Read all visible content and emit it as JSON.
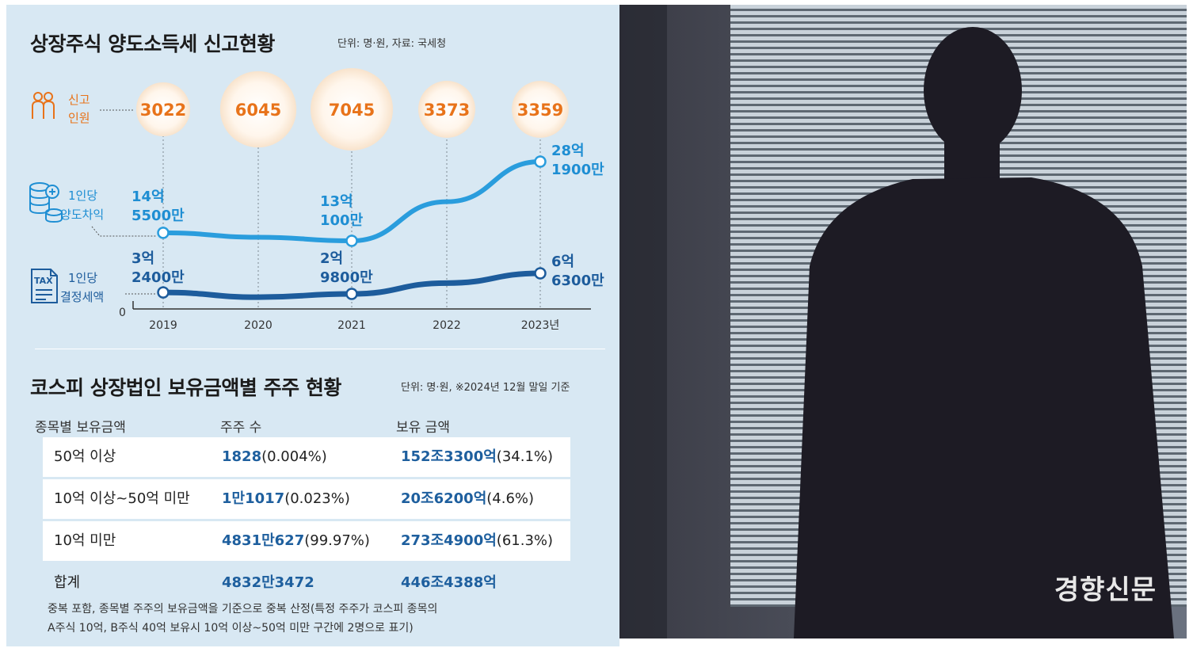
{
  "chart1": {
    "title": "상장주식 양도소득세 신고현황",
    "unit": "단위: 명·원, 자료: 국세청",
    "row_labels": {
      "count": [
        "신고",
        "인원"
      ],
      "gain": [
        "1인당",
        "양도차익"
      ],
      "tax": [
        "1인당",
        "결정세액"
      ]
    },
    "zero_label": "0"
  },
  "chart_data": {
    "type": "line",
    "title": "상장주식 양도소득세 신고현황",
    "x": [
      "2019",
      "2020",
      "2021",
      "2022",
      "2023년"
    ],
    "bubbles": {
      "name": "신고 인원",
      "values": [
        3022,
        6045,
        7045,
        3373,
        3359
      ],
      "labels": [
        "3022",
        "6045",
        "7045",
        "3373",
        "3359"
      ]
    },
    "series": [
      {
        "name": "1인당 양도차익",
        "values": [
          14.55,
          13.7,
          13.01,
          20.5,
          28.19
        ],
        "labels": [
          [
            "14억",
            "5500만"
          ],
          null,
          [
            "13억",
            "100만"
          ],
          null,
          [
            "28억",
            "1900만"
          ]
        ]
      },
      {
        "name": "1인당 결정세액",
        "values": [
          3.24,
          2.4,
          2.98,
          4.9,
          6.63
        ],
        "labels": [
          [
            "3억",
            "2400만"
          ],
          null,
          [
            "2억",
            "9800만"
          ],
          null,
          [
            "6억",
            "6300만"
          ]
        ]
      }
    ],
    "xlabel": "",
    "ylabel": "",
    "grid": false
  },
  "chart2": {
    "title": "코스피 상장법인 보유금액별 주주 현황",
    "unit": "단위: 명·원, ※2024년 12월 말일 기준",
    "headers": [
      "종목별 보유금액",
      "주주 수",
      "보유 금액"
    ],
    "rows": [
      {
        "cat": "50억 이상",
        "cnt": "1828",
        "cnt_pct": "(0.004%)",
        "amt": "152조3300억",
        "amt_pct": "(34.1%)"
      },
      {
        "cat": "10억 이상~50억 미만",
        "cnt": "1만1017",
        "cnt_pct": "(0.023%)",
        "amt": "20조6200억",
        "amt_pct": "(4.6%)"
      },
      {
        "cat": "10억 미만",
        "cnt": "4831만627",
        "cnt_pct": "(99.97%)",
        "amt": "273조4900억",
        "amt_pct": "(61.3%)"
      }
    ],
    "total": {
      "cat": "합계",
      "cnt": "4832만3472",
      "amt": "446조4388억"
    },
    "footnote": [
      "중복 포함, 종목별 주주의 보유금액을 기준으로 중복 산정(특정 주주가 코스피 종목의",
      "A주식 10억, B주식 40억 보유시 10억 이상~50억 미만 구간에 2명으로 표기)"
    ]
  },
  "photo": {
    "watermark": "경향신문"
  },
  "colors": {
    "background": "#d8e8f3",
    "orange": "#e8731a",
    "light_blue": "#1e8ed3",
    "dark_blue": "#1d5c9c"
  }
}
